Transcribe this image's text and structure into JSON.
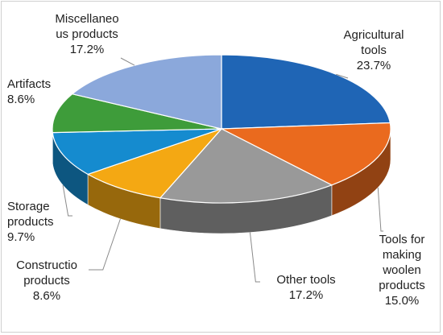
{
  "chart_data": {
    "type": "pie",
    "subtype": "3d-exploded-perspective",
    "title": "",
    "slices": [
      {
        "label_lines": [
          "Agricultural",
          "tools"
        ],
        "percent_text": "23.7%",
        "value": 23.7,
        "color": "#1f65b5"
      },
      {
        "label_lines": [
          "Tools for",
          "making",
          "woolen",
          "products"
        ],
        "percent_text": "15.0%",
        "value": 15.0,
        "color": "#ea6a1e"
      },
      {
        "label_lines": [
          "Other tools"
        ],
        "percent_text": "17.2%",
        "value": 17.2,
        "color": "#999999"
      },
      {
        "label_lines": [
          "Constructio",
          "products"
        ],
        "percent_text": "8.6%",
        "value": 8.6,
        "color": "#f4a813"
      },
      {
        "label_lines": [
          "Storage",
          "products"
        ],
        "percent_text": "9.7%",
        "value": 9.7,
        "color": "#158bcf"
      },
      {
        "label_lines": [
          "Artifacts"
        ],
        "percent_text": "8.6%",
        "value": 8.6,
        "color": "#3e9c3a"
      },
      {
        "label_lines": [
          "Miscellaneo",
          "us products"
        ],
        "percent_text": "17.2%",
        "value": 17.2,
        "color": "#8ba8db"
      }
    ],
    "legend": "none",
    "data_labels": "outside-with-leader-lines"
  }
}
